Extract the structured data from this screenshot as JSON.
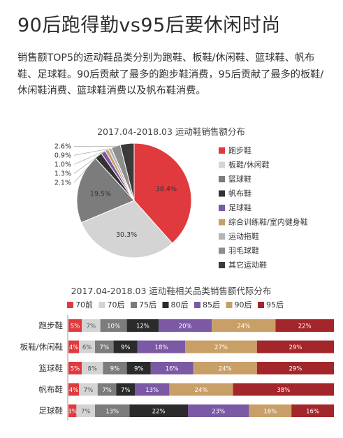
{
  "title": "90后跑得勤vs95后要休闲时尚",
  "intro": "销售额TOP5的运动鞋品类分别为跑鞋、板鞋/休闲鞋、篮球鞋、帆布鞋、足球鞋。90后贡献了最多的跑步鞋消费，95后贡献了最多的板鞋/休闲鞋消费、篮球鞋消费以及帆布鞋消费。",
  "chart_data": [
    {
      "type": "pie",
      "title": "2017.04-2018.03 运动鞋销售额分布",
      "labels": [
        "跑步鞋",
        "板鞋/休闲鞋",
        "篮球鞋",
        "帆布鞋",
        "足球鞋",
        "综合训练鞋/室内健身鞋",
        "运动拖鞋",
        "羽毛球鞋",
        "其它运动鞋"
      ],
      "values": [
        38.4,
        30.3,
        19.5,
        2.1,
        1.3,
        1.0,
        0.9,
        2.6,
        3.9
      ],
      "value_labels": [
        "38.4%",
        "30.3%",
        "19.5%",
        "2.1%",
        "1.3%",
        "1.0%",
        "0.9%",
        "2.6%",
        ""
      ],
      "colors": [
        "#e03a3e",
        "#d4d4d4",
        "#7c7c7c",
        "#333333",
        "#7b59a4",
        "#c89f67",
        "#b4b4b4",
        "#8e8e8e",
        "#3a3a3a"
      ],
      "legend_position": "right"
    },
    {
      "type": "bar",
      "stacked": true,
      "orientation": "horizontal",
      "title": "2017.04-2018.03 运动鞋相关品类销售额代际分布",
      "categories": [
        "跑步鞋",
        "板鞋/休闲鞋",
        "篮球鞋",
        "帆布鞋",
        "足球鞋"
      ],
      "series": [
        {
          "name": "70前",
          "color": "#e03a3e",
          "values": [
            5,
            4,
            5,
            4,
            3
          ]
        },
        {
          "name": "70后",
          "color": "#d4d4d4",
          "values": [
            7,
            6,
            8,
            7,
            7
          ]
        },
        {
          "name": "75后",
          "color": "#7c7c7c",
          "values": [
            10,
            7,
            9,
            7,
            13
          ]
        },
        {
          "name": "80后",
          "color": "#2b2b2b",
          "values": [
            12,
            9,
            9,
            7,
            22
          ]
        },
        {
          "name": "85后",
          "color": "#7b59a4",
          "values": [
            20,
            18,
            16,
            13,
            23
          ]
        },
        {
          "name": "90后",
          "color": "#c89f67",
          "values": [
            24,
            27,
            24,
            24,
            16
          ]
        },
        {
          "name": "95后",
          "color": "#a3262a",
          "values": [
            22,
            29,
            29,
            38,
            16
          ]
        }
      ],
      "legend_position": "top"
    }
  ]
}
